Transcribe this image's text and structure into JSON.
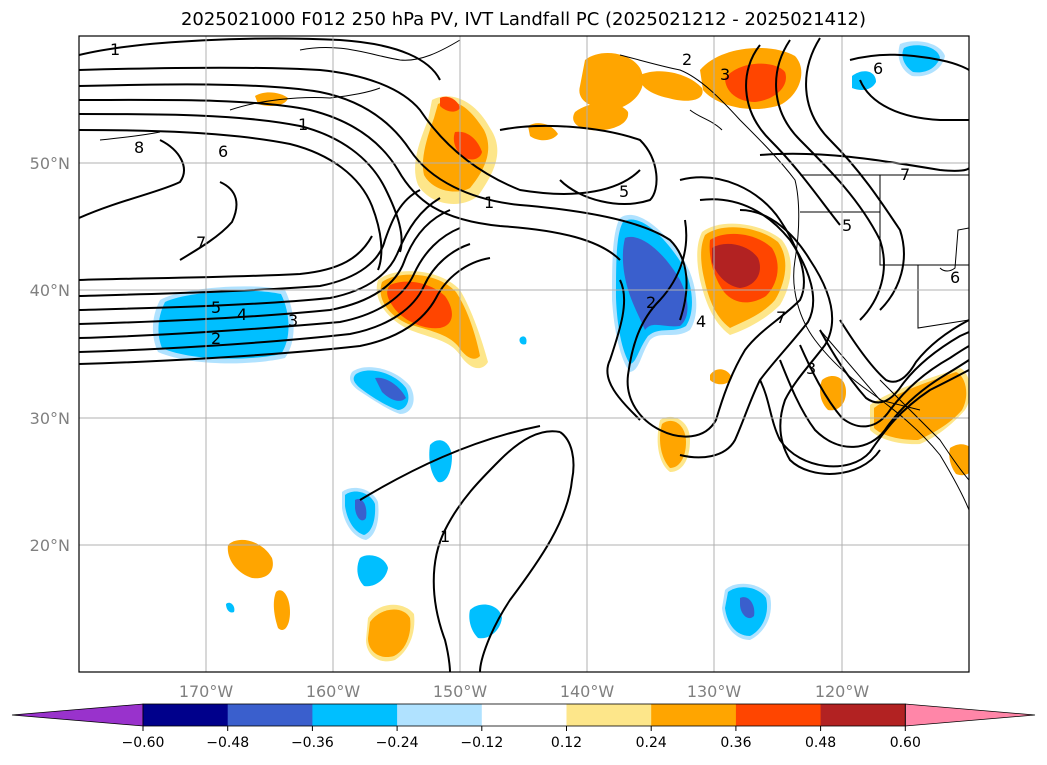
{
  "title": "2025021000 F012 250 hPa PV, IVT Landfall PC (2025021212 - 2025021412)",
  "axes": {
    "lon_ticks": [
      "170°W",
      "160°W",
      "150°W",
      "140°W",
      "130°W",
      "120°W"
    ],
    "lat_ticks": [
      "50°N",
      "40°N",
      "30°N",
      "20°N"
    ],
    "grid": true
  },
  "colorbar": {
    "ticks": [
      "−0.60",
      "−0.48",
      "−0.36",
      "−0.24",
      "−0.12",
      "0.12",
      "0.24",
      "0.36",
      "0.48",
      "0.60"
    ],
    "colors": [
      "#9932cc",
      "#00008b",
      "#3a5fcd",
      "#00bfff",
      "#b0e2ff",
      "#ffffff",
      "#fde68a",
      "#ffa500",
      "#ff4500",
      "#b22222",
      "#ff86a8"
    ],
    "extend": "both"
  },
  "contour_labels": [
    "1",
    "8",
    "6",
    "1",
    "7",
    "5",
    "4",
    "3",
    "2",
    "1",
    "5",
    "2",
    "4",
    "7",
    "3",
    "2",
    "3",
    "6",
    "7",
    "5",
    "6",
    "1"
  ]
}
